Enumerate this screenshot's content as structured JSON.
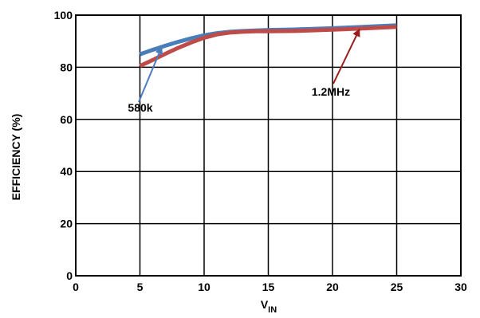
{
  "chart_data": {
    "type": "line",
    "title": "",
    "xlabel": "V",
    "xlabel_sub": "IN",
    "ylabel": "EFFICIENCY (%)",
    "xlim": [
      0,
      30
    ],
    "ylim": [
      0,
      100
    ],
    "xticks": [
      0,
      5,
      10,
      15,
      20,
      25,
      30
    ],
    "yticks": [
      0,
      20,
      40,
      60,
      80,
      100
    ],
    "grid": true,
    "series": [
      {
        "name": "580k",
        "color": "#4A7EBB",
        "x": [
          5,
          6,
          7,
          8,
          9,
          10,
          11,
          12,
          13,
          14,
          15,
          17,
          20,
          22,
          25
        ],
        "y": [
          85,
          86.7,
          88.3,
          89.8,
          91.1,
          92.3,
          93.1,
          93.6,
          93.9,
          94.1,
          94.3,
          94.5,
          95,
          95.4,
          96.1
        ]
      },
      {
        "name": "1.2MHz",
        "color": "#BE4B48",
        "x": [
          5,
          6,
          7,
          8,
          9,
          10,
          11,
          12,
          13,
          14,
          15,
          17,
          20,
          22,
          25
        ],
        "y": [
          80.5,
          82.8,
          85.2,
          87.5,
          89.5,
          91.3,
          92.6,
          93.3,
          93.6,
          93.8,
          93.8,
          93.9,
          94.4,
          94.8,
          95.5
        ]
      }
    ],
    "annotations": [
      {
        "text": "580k",
        "color": "#4A7EBB",
        "target_x": 6.7,
        "target_y": 87.8
      },
      {
        "text": "1.2MHz",
        "color": "#9B1C1C",
        "target_x": 22.1,
        "target_y": 94.6
      }
    ]
  }
}
